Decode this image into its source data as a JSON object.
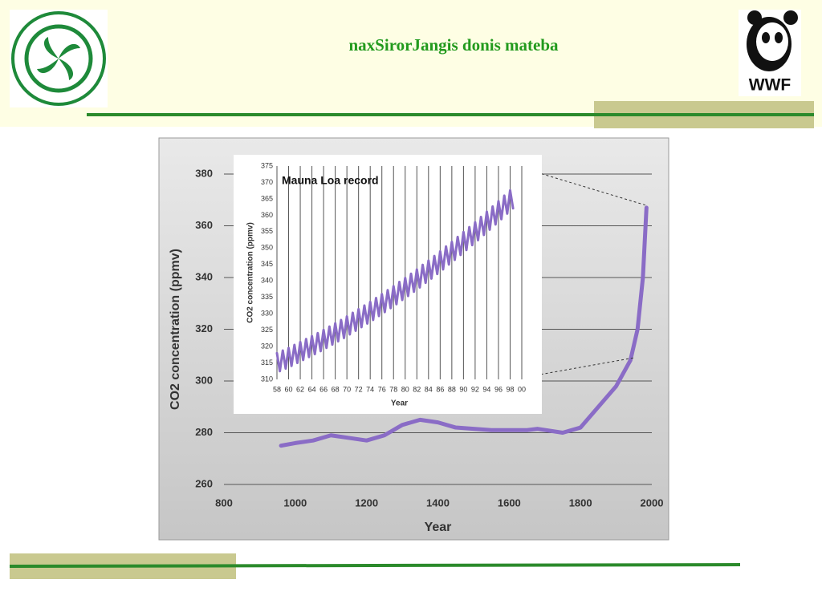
{
  "slide": {
    "title": "naxSirorJangis donis mateba",
    "logo_right": "WWF"
  },
  "chart_data": [
    {
      "type": "line",
      "xlabel": "Year",
      "ylabel": "CO2 concentration (ppmv)",
      "xlim": [
        800,
        2000
      ],
      "xticks": [
        800,
        1000,
        1200,
        1400,
        1600,
        1800,
        2000
      ],
      "ylim": [
        260,
        380
      ],
      "yticks": [
        260,
        280,
        300,
        320,
        340,
        360,
        380
      ],
      "grid": true,
      "x": [
        960,
        1000,
        1050,
        1100,
        1150,
        1200,
        1250,
        1300,
        1350,
        1400,
        1450,
        1500,
        1550,
        1600,
        1650,
        1680,
        1750,
        1800,
        1850,
        1900,
        1940,
        1960,
        1975,
        1985
      ],
      "series": [
        {
          "color": "#8a6cc6",
          "values": [
            275,
            276,
            277,
            279,
            278,
            277,
            279,
            283,
            285,
            284,
            282,
            281.5,
            281,
            281,
            281,
            281.5,
            280,
            282,
            290,
            298,
            308,
            320,
            340,
            367
          ]
        }
      ]
    },
    {
      "type": "line",
      "title": "Mauna Loa record",
      "xlabel": "Year",
      "ylabel": "CO2 concentration (ppmv)",
      "xlim": [
        1958,
        2000
      ],
      "xticks": [
        {
          "value": 1958,
          "label": "58"
        },
        {
          "value": 1960,
          "label": "60"
        },
        {
          "value": 1962,
          "label": "62"
        },
        {
          "value": 1964,
          "label": "64"
        },
        {
          "value": 1966,
          "label": "66"
        },
        {
          "value": 1968,
          "label": "68"
        },
        {
          "value": 1970,
          "label": "70"
        },
        {
          "value": 1972,
          "label": "72"
        },
        {
          "value": 1974,
          "label": "74"
        },
        {
          "value": 1976,
          "label": "76"
        },
        {
          "value": 1978,
          "label": "78"
        },
        {
          "value": 1980,
          "label": "80"
        },
        {
          "value": 1982,
          "label": "82"
        },
        {
          "value": 1984,
          "label": "84"
        },
        {
          "value": 1986,
          "label": "86"
        },
        {
          "value": 1988,
          "label": "88"
        },
        {
          "value": 1990,
          "label": "90"
        },
        {
          "value": 1992,
          "label": "92"
        },
        {
          "value": 1994,
          "label": "94"
        },
        {
          "value": 1996,
          "label": "96"
        },
        {
          "value": 1998,
          "label": "98"
        },
        {
          "value": 2000,
          "label": "00"
        }
      ],
      "ylim": [
        310,
        375
      ],
      "yticks": [
        310,
        315,
        320,
        325,
        330,
        335,
        340,
        345,
        350,
        355,
        360,
        365,
        370,
        375
      ],
      "grid": true,
      "x": [
        1958,
        1958.5,
        1959,
        1959.5,
        1960,
        1960.5,
        1961,
        1961.5,
        1962,
        1962.5,
        1963,
        1963.5,
        1964,
        1964.5,
        1965,
        1965.5,
        1966,
        1966.5,
        1967,
        1967.5,
        1968,
        1968.5,
        1969,
        1969.5,
        1970,
        1970.5,
        1971,
        1971.5,
        1972,
        1972.5,
        1973,
        1973.5,
        1974,
        1974.5,
        1975,
        1975.5,
        1976,
        1976.5,
        1977,
        1977.5,
        1978,
        1978.5,
        1979,
        1979.5,
        1980,
        1980.5,
        1981,
        1981.5,
        1982,
        1982.5,
        1983,
        1983.5,
        1984,
        1984.5,
        1985,
        1985.5,
        1986,
        1986.5,
        1987,
        1987.5,
        1988,
        1988.5,
        1989,
        1989.5,
        1990,
        1990.5,
        1991,
        1991.5,
        1992,
        1992.5,
        1993,
        1993.5,
        1994,
        1994.5,
        1995,
        1995.5,
        1996,
        1996.5,
        1997,
        1997.5,
        1998,
        1998.5
      ],
      "series": [
        {
          "color": "#8a6cc6",
          "values": [
            318.0,
            312.5,
            318.8,
            313.3,
            319.6,
            314.1,
            320.5,
            315.0,
            321.4,
            315.9,
            322.3,
            316.8,
            323.2,
            317.7,
            324.1,
            318.6,
            325.1,
            319.6,
            326.1,
            320.6,
            327.1,
            321.6,
            328.1,
            322.6,
            329.2,
            323.7,
            330.3,
            324.8,
            331.4,
            325.9,
            332.5,
            327.0,
            333.6,
            328.1,
            334.8,
            329.3,
            336.0,
            330.5,
            337.2,
            331.7,
            338.4,
            332.9,
            339.7,
            334.2,
            340.9,
            335.4,
            342.2,
            336.7,
            343.5,
            338.0,
            344.9,
            339.4,
            346.2,
            340.7,
            347.6,
            342.1,
            349.0,
            343.5,
            350.5,
            345.0,
            351.9,
            346.4,
            353.4,
            347.9,
            354.9,
            349.4,
            356.4,
            350.9,
            357.9,
            352.4,
            359.5,
            354.0,
            361.1,
            355.6,
            362.7,
            357.2,
            364.3,
            358.8,
            366.0,
            360.5,
            367.6,
            362.1
          ]
        }
      ]
    }
  ]
}
